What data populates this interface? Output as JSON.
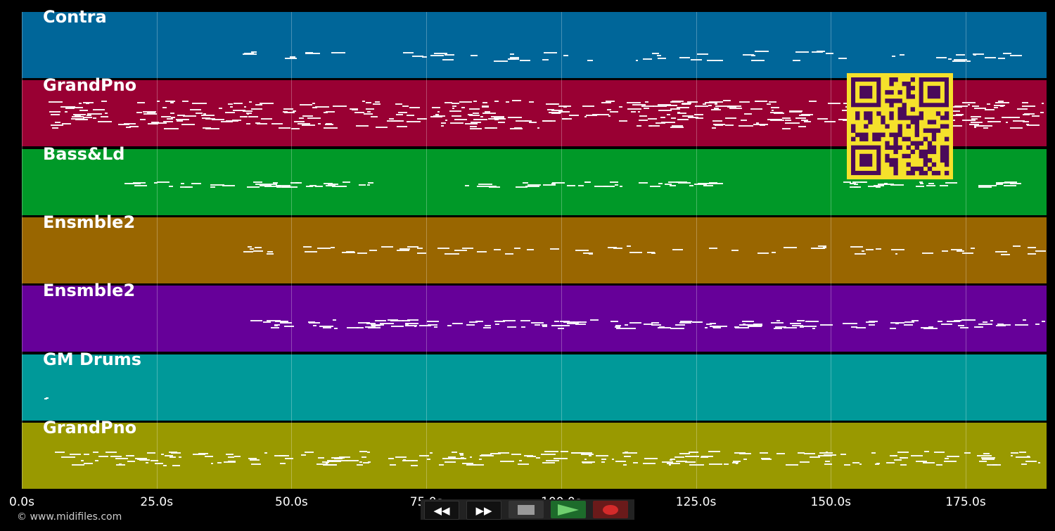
{
  "tracks": [
    {
      "name": "Contra",
      "color": "#006699"
    },
    {
      "name": "GrandPno",
      "color": "#990033"
    },
    {
      "name": "Bass&Ld",
      "color": "#009928"
    },
    {
      "name": "Ensmble2",
      "color": "#996600"
    },
    {
      "name": "Ensmble2",
      "color": "#660099"
    },
    {
      "name": "GM Drums",
      "color": "#009999"
    },
    {
      "name": "GrandPno",
      "color": "#999900"
    }
  ],
  "time_axis": {
    "unit": "s",
    "ticks": [
      "0.0s",
      "25.0s",
      "50.0s",
      "75.0s",
      "100.0s",
      "125.0s",
      "150.0s",
      "175.0s"
    ],
    "range": [
      0,
      190
    ]
  },
  "copyright": "© www.midifiles.com",
  "controls": {
    "rewind_icon": "rewind-icon",
    "forward_icon": "fast-forward-icon",
    "stop_icon": "stop-icon",
    "play_icon": "play-icon",
    "record_icon": "record-icon"
  },
  "qr_code": {
    "color": "#f5e12b",
    "module_color": "#4a0a5a"
  }
}
